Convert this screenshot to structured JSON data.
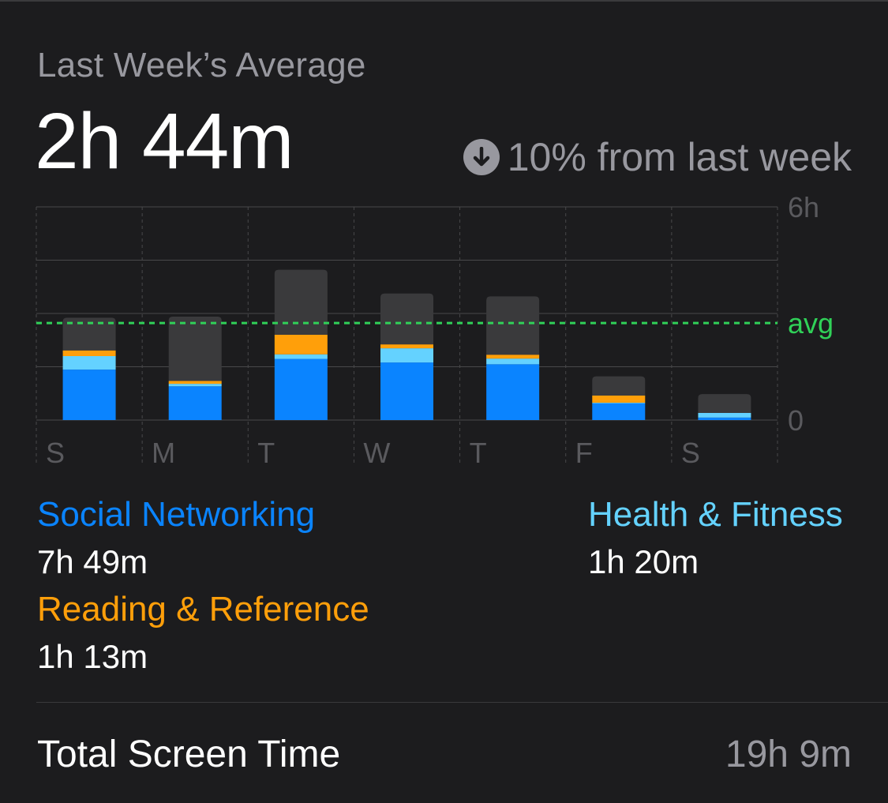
{
  "header": {
    "label": "Last Week’s Average",
    "average": "2h 44m",
    "change_text": "10% from last week",
    "change_direction_icon": "arrow-down-circle-icon"
  },
  "colors": {
    "background": "#1c1c1e",
    "social": "#0a84ff",
    "health": "#64d2ff",
    "reading": "#ff9f0a",
    "other": "#3a3a3c",
    "avg_line": "#30d158",
    "secondary_text": "#98989f"
  },
  "chart_data": {
    "type": "bar",
    "stacked": true,
    "categories": [
      "S",
      "M",
      "T",
      "W",
      "T",
      "F",
      "S"
    ],
    "y_ticks": [
      "6h",
      "0"
    ],
    "ylim": [
      0,
      6
    ],
    "avg_label": "avg",
    "avg_value": 2.73,
    "series": [
      {
        "key": "social",
        "values": [
          1.42,
          0.95,
          1.72,
          1.62,
          1.57,
          0.47,
          0.07
        ]
      },
      {
        "key": "health",
        "values": [
          0.38,
          0.07,
          0.13,
          0.4,
          0.16,
          0.02,
          0.13
        ]
      },
      {
        "key": "reading",
        "values": [
          0.16,
          0.08,
          0.55,
          0.11,
          0.11,
          0.2,
          0.0
        ]
      },
      {
        "key": "other",
        "values": [
          0.92,
          1.81,
          1.83,
          1.43,
          1.64,
          0.54,
          0.53
        ]
      }
    ],
    "grid": true
  },
  "legend": [
    {
      "name": "Social Networking",
      "value": "7h 49m"
    },
    {
      "name": "Health & Fitness",
      "value": "1h 20m"
    },
    {
      "name": "Reading & Reference",
      "value": "1h 13m"
    }
  ],
  "total": {
    "label": "Total Screen Time",
    "value": "19h 9m"
  }
}
